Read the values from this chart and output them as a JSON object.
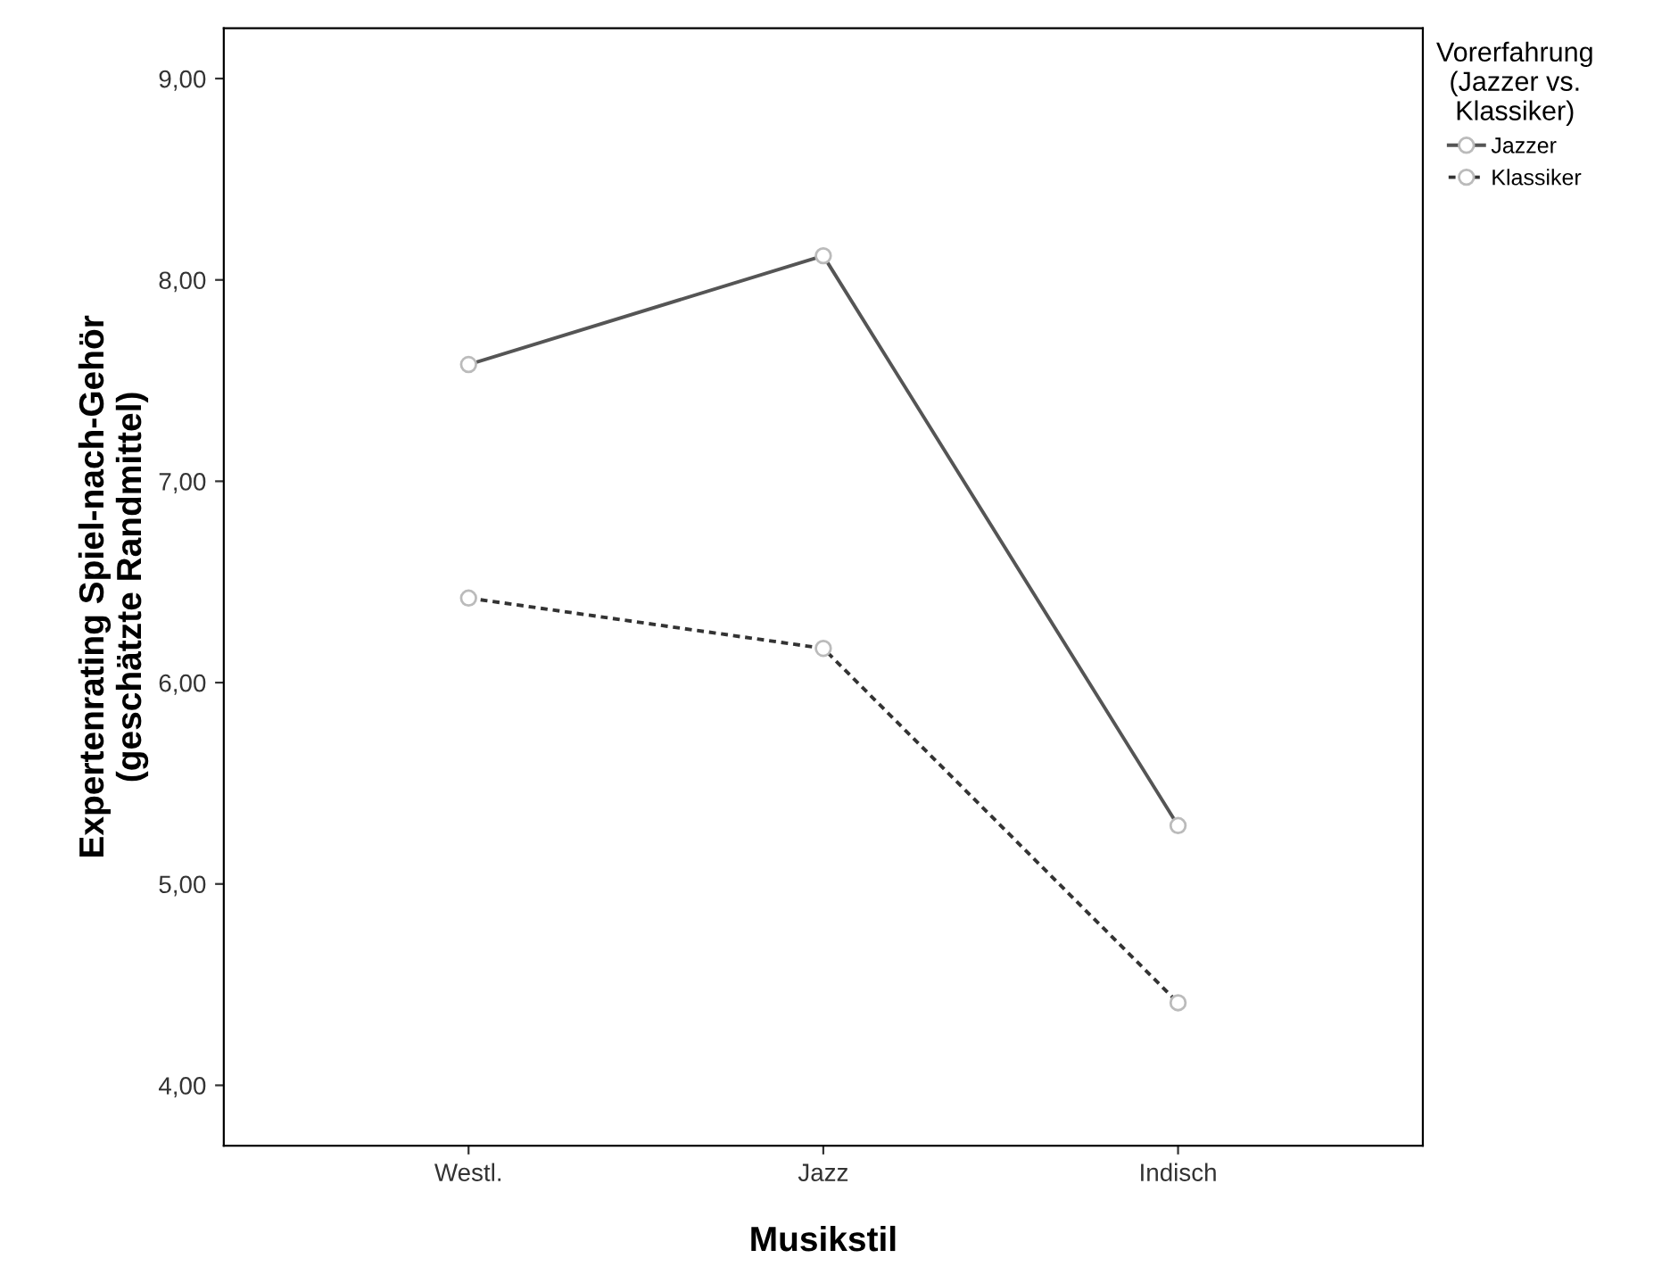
{
  "chart_data": {
    "type": "line",
    "xlabel": "Musikstil",
    "ylabel": "Expertenrating Spiel-nach-Gehör\n(geschätzte Randmittel)",
    "legend_title": "Vorerfahrung\n(Jazzer vs.\nKlassiker)",
    "categories": [
      "Westl.",
      "Jazz",
      "Indisch"
    ],
    "series": [
      {
        "name": "Jazzer",
        "color": "#555555",
        "line_style": "solid",
        "values": [
          7.58,
          8.12,
          5.29
        ]
      },
      {
        "name": "Klassiker",
        "color": "#333333",
        "line_style": "dashed",
        "values": [
          6.42,
          6.17,
          4.41
        ]
      }
    ],
    "marker": "circle",
    "ylim": [
      3.7,
      9.25
    ],
    "yticks": [
      {
        "value": 4,
        "label": "4,00"
      },
      {
        "value": 5,
        "label": "5,00"
      },
      {
        "value": 6,
        "label": "6,00"
      },
      {
        "value": 7,
        "label": "7,00"
      },
      {
        "value": 8,
        "label": "8,00"
      },
      {
        "value": 9,
        "label": "9,00"
      }
    ],
    "grid": false,
    "legend": "right"
  }
}
